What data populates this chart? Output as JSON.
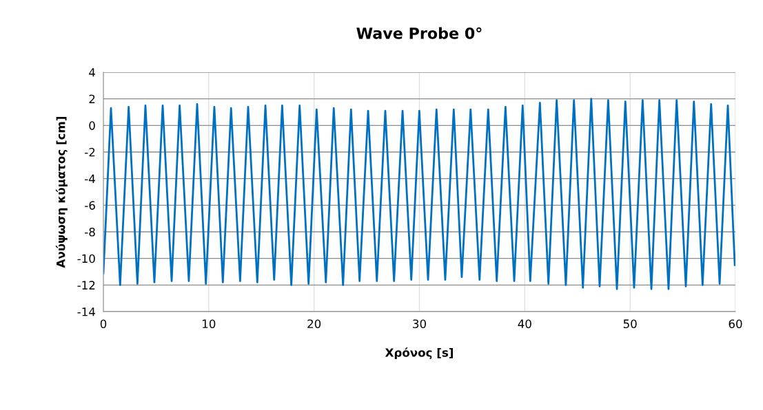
{
  "chart_data": {
    "type": "line",
    "title": "Wave Probe 0°",
    "xlabel": "Χρόνος [s]",
    "ylabel": "Ανύψωση κύματος [cm]",
    "xlim": [
      0,
      60
    ],
    "xticks": [
      0,
      10,
      20,
      30,
      40,
      50,
      60
    ],
    "ylim": [
      -14,
      4
    ],
    "yticks": [
      -14,
      -12,
      -10,
      -8,
      -6,
      -4,
      -2,
      0,
      2,
      4
    ],
    "grid": true,
    "legend": false,
    "marker": "none",
    "line_style": "solid",
    "series": [
      {
        "color": "#0070c0",
        "x": [
          0,
          0.72,
          1.59,
          2.4,
          3.23,
          3.99,
          4.84,
          5.63,
          6.48,
          7.24,
          8.11,
          8.9,
          9.73,
          10.53,
          11.34,
          12.12,
          12.98,
          13.74,
          14.61,
          15.38,
          16.21,
          16.97,
          17.84,
          18.63,
          19.48,
          20.24,
          21.12,
          21.87,
          22.75,
          23.51,
          24.32,
          25.13,
          25.96,
          26.76,
          27.59,
          28.4,
          29.23,
          29.99,
          30.82,
          31.62,
          32.45,
          33.26,
          34.02,
          34.86,
          35.71,
          36.53,
          37.34,
          38.17,
          39.0,
          39.8,
          40.52,
          41.44,
          42.25,
          43.03,
          43.9,
          44.67,
          45.52,
          46.31,
          47.11,
          47.92,
          48.75,
          49.55,
          50.38,
          51.19,
          52.02,
          52.78,
          53.65,
          54.42,
          55.29,
          56.06,
          56.88,
          57.69,
          58.5,
          59.28,
          59.94
        ],
        "values": [
          -11.1,
          1.3,
          -12.0,
          1.4,
          -11.9,
          1.5,
          -11.8,
          1.5,
          -11.7,
          1.5,
          -11.7,
          1.6,
          -11.9,
          1.4,
          -11.8,
          1.3,
          -11.7,
          1.4,
          -11.8,
          1.5,
          -11.6,
          1.5,
          -12.0,
          1.5,
          -11.9,
          1.2,
          -11.8,
          1.3,
          -12.0,
          1.2,
          -11.7,
          1.1,
          -11.7,
          1.1,
          -11.7,
          1.1,
          -11.6,
          1.1,
          -11.6,
          1.2,
          -11.6,
          1.2,
          -11.4,
          1.2,
          -11.6,
          1.2,
          -11.7,
          1.4,
          -11.7,
          1.5,
          -11.7,
          1.7,
          -11.9,
          1.9,
          -12.0,
          1.9,
          -12.2,
          2.0,
          -12.1,
          1.9,
          -12.3,
          1.8,
          -12.2,
          1.9,
          -12.3,
          1.9,
          -12.3,
          1.9,
          -12.1,
          1.8,
          -12.0,
          1.6,
          -11.9,
          1.5,
          -10.5
        ]
      }
    ]
  }
}
